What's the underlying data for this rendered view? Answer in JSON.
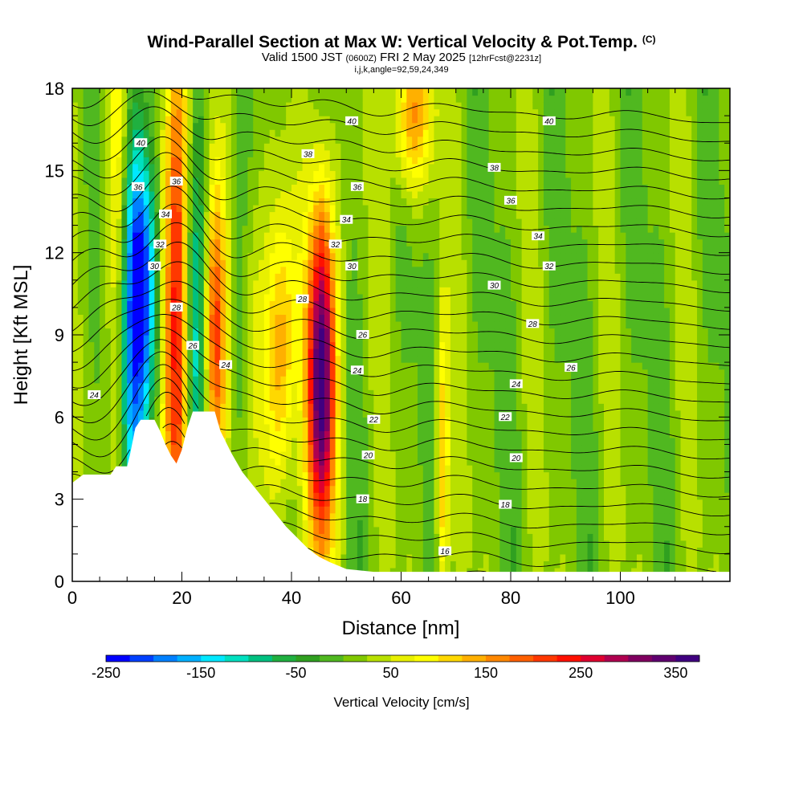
{
  "title": {
    "main": "Wind-Parallel Section at Max W: Vertical Velocity & Pot.Temp.",
    "copyright": "(C)",
    "valid_prefix": "Valid 1500 JST",
    "valid_utc": "(0600Z)",
    "valid_date": "FRI 2 May 2025",
    "forecast": "[12hrFcst@2231z]",
    "indices": "i,j,k,angle=92,59,24,349"
  },
  "chart_data": {
    "type": "heatmap",
    "xlabel": "Distance [nm]",
    "ylabel": "Height [Kft MSL]",
    "xlim": [
      0,
      120
    ],
    "ylim": [
      0,
      18
    ],
    "x_ticks": [
      0,
      20,
      40,
      60,
      80,
      100
    ],
    "x_tick_labels": [
      "0",
      "20",
      "40",
      "60",
      "80",
      "100"
    ],
    "y_ticks": [
      0,
      3,
      6,
      9,
      12,
      15,
      18
    ],
    "y_tick_labels": [
      "0",
      "3",
      "6",
      "9",
      "12",
      "15",
      "18"
    ],
    "colorbar": {
      "title": "Vertical Velocity [cm/s]",
      "min": -250,
      "max": 375,
      "step": 25,
      "tick_values": [
        -250,
        -150,
        -50,
        50,
        150,
        250,
        350
      ],
      "tick_labels": [
        "-250",
        "-150",
        "-50",
        "50",
        "150",
        "250",
        "350"
      ],
      "colors": [
        "#0000ff",
        "#0040ff",
        "#0080ff",
        "#00b0ff",
        "#00e8ff",
        "#00e0c0",
        "#00c080",
        "#20b040",
        "#30a020",
        "#50b820",
        "#80c800",
        "#b8e000",
        "#e8f000",
        "#ffff00",
        "#ffd800",
        "#ffb000",
        "#ff8800",
        "#ff6000",
        "#ff3800",
        "#ff1000",
        "#e00030",
        "#b00050",
        "#800060",
        "#600070",
        "#400080"
      ]
    },
    "terrain_kft": [
      [
        0,
        3.6
      ],
      [
        2,
        3.9
      ],
      [
        7,
        3.9
      ],
      [
        8,
        4.2
      ],
      [
        10,
        4.2
      ],
      [
        10.5,
        4.6
      ],
      [
        11,
        5.1
      ],
      [
        11.5,
        5.6
      ],
      [
        12.5,
        5.9
      ],
      [
        15,
        5.9
      ],
      [
        16,
        5.5
      ],
      [
        17,
        5.0
      ],
      [
        18,
        4.6
      ],
      [
        19,
        4.3
      ],
      [
        20,
        4.8
      ],
      [
        21,
        5.6
      ],
      [
        22,
        6.2
      ],
      [
        26,
        6.2
      ],
      [
        27,
        5.5
      ],
      [
        29,
        4.7
      ],
      [
        31,
        4.0
      ],
      [
        33,
        3.5
      ],
      [
        35,
        3.0
      ],
      [
        37,
        2.5
      ],
      [
        39,
        2.0
      ],
      [
        41,
        1.6
      ],
      [
        43,
        1.2
      ],
      [
        45,
        0.9
      ],
      [
        47,
        0.7
      ],
      [
        50,
        0.45
      ],
      [
        55,
        0.35
      ],
      [
        120,
        0.35
      ]
    ],
    "w_features": [
      {
        "x": 11,
        "z": 9,
        "w": -200,
        "sigma_x": 2.5,
        "sigma_z": 6
      },
      {
        "x": 13,
        "z": 11,
        "w": -150,
        "sigma_x": 2,
        "sigma_z": 3
      },
      {
        "x": 19,
        "z": 10,
        "w": 250,
        "sigma_x": 1.8,
        "sigma_z": 8
      },
      {
        "x": 8.5,
        "z": 12,
        "w": 150,
        "sigma_x": 1.5,
        "sigma_z": 8
      },
      {
        "x": 22.5,
        "z": 9,
        "w": -150,
        "sigma_x": 1.5,
        "sigma_z": 6
      },
      {
        "x": 26,
        "z": 9,
        "w": 200,
        "sigma_x": 1.5,
        "sigma_z": 4
      },
      {
        "x": 33,
        "z": 9,
        "w": 50,
        "sigma_x": 1.5,
        "sigma_z": 4
      },
      {
        "x": 38,
        "z": 8,
        "w": 150,
        "sigma_x": 2,
        "sigma_z": 4
      },
      {
        "x": 45.5,
        "z": 7.5,
        "w": 375,
        "sigma_x": 1.8,
        "sigma_z": 4.5
      },
      {
        "x": 67.5,
        "z": 4,
        "w": 130,
        "sigma_x": 0.8,
        "sigma_z": 4
      },
      {
        "x": 62,
        "z": 17,
        "w": 150,
        "sigma_x": 2.5,
        "sigma_z": 2
      },
      {
        "x": 30,
        "z": 8,
        "w": -30,
        "sigma_x": 1.5,
        "sigma_z": 5
      },
      {
        "x": 40,
        "z": 5,
        "w": -30,
        "sigma_x": 1.5,
        "sigma_z": 3
      }
    ],
    "theta_contours": [
      {
        "label": "16",
        "label_x": 68,
        "label_z": 1.1
      },
      {
        "label": "18",
        "label_x": 53,
        "label_z": 3.0
      },
      {
        "label": "18",
        "label_x": 79,
        "label_z": 2.8
      },
      {
        "label": "20",
        "label_x": 54,
        "label_z": 4.6
      },
      {
        "label": "20",
        "label_x": 81,
        "label_z": 4.5
      },
      {
        "label": "22",
        "label_x": 55,
        "label_z": 5.9
      },
      {
        "label": "22",
        "label_x": 79,
        "label_z": 6.0
      },
      {
        "label": "24",
        "label_x": 4,
        "label_z": 6.8
      },
      {
        "label": "24",
        "label_x": 28,
        "label_z": 7.9
      },
      {
        "label": "24",
        "label_x": 52,
        "label_z": 7.7
      },
      {
        "label": "24",
        "label_x": 81,
        "label_z": 7.2
      },
      {
        "label": "26",
        "label_x": 22,
        "label_z": 8.6
      },
      {
        "label": "26",
        "label_x": 53,
        "label_z": 9.0
      },
      {
        "label": "26",
        "label_x": 91,
        "label_z": 7.8
      },
      {
        "label": "28",
        "label_x": 19,
        "label_z": 10.0
      },
      {
        "label": "28",
        "label_x": 42,
        "label_z": 10.3
      },
      {
        "label": "28",
        "label_x": 84,
        "label_z": 9.4
      },
      {
        "label": "30",
        "label_x": 15,
        "label_z": 11.5
      },
      {
        "label": "30",
        "label_x": 51,
        "label_z": 11.5
      },
      {
        "label": "30",
        "label_x": 77,
        "label_z": 10.8
      },
      {
        "label": "32",
        "label_x": 16,
        "label_z": 12.3
      },
      {
        "label": "32",
        "label_x": 48,
        "label_z": 12.3
      },
      {
        "label": "32",
        "label_x": 87,
        "label_z": 11.5
      },
      {
        "label": "34",
        "label_x": 17,
        "label_z": 13.4
      },
      {
        "label": "34",
        "label_x": 50,
        "label_z": 13.2
      },
      {
        "label": "34",
        "label_x": 85,
        "label_z": 12.6
      },
      {
        "label": "36",
        "label_x": 12,
        "label_z": 14.4
      },
      {
        "label": "36",
        "label_x": 19,
        "label_z": 14.6
      },
      {
        "label": "36",
        "label_x": 52,
        "label_z": 14.4
      },
      {
        "label": "36",
        "label_x": 80,
        "label_z": 13.9
      },
      {
        "label": "38",
        "label_x": 43,
        "label_z": 15.6
      },
      {
        "label": "38",
        "label_x": 77,
        "label_z": 15.1
      },
      {
        "label": "40",
        "label_x": 12.5,
        "label_z": 16.0
      },
      {
        "label": "40",
        "label_x": 51,
        "label_z": 16.8
      },
      {
        "label": "40",
        "label_x": 87,
        "label_z": 16.8
      }
    ]
  }
}
